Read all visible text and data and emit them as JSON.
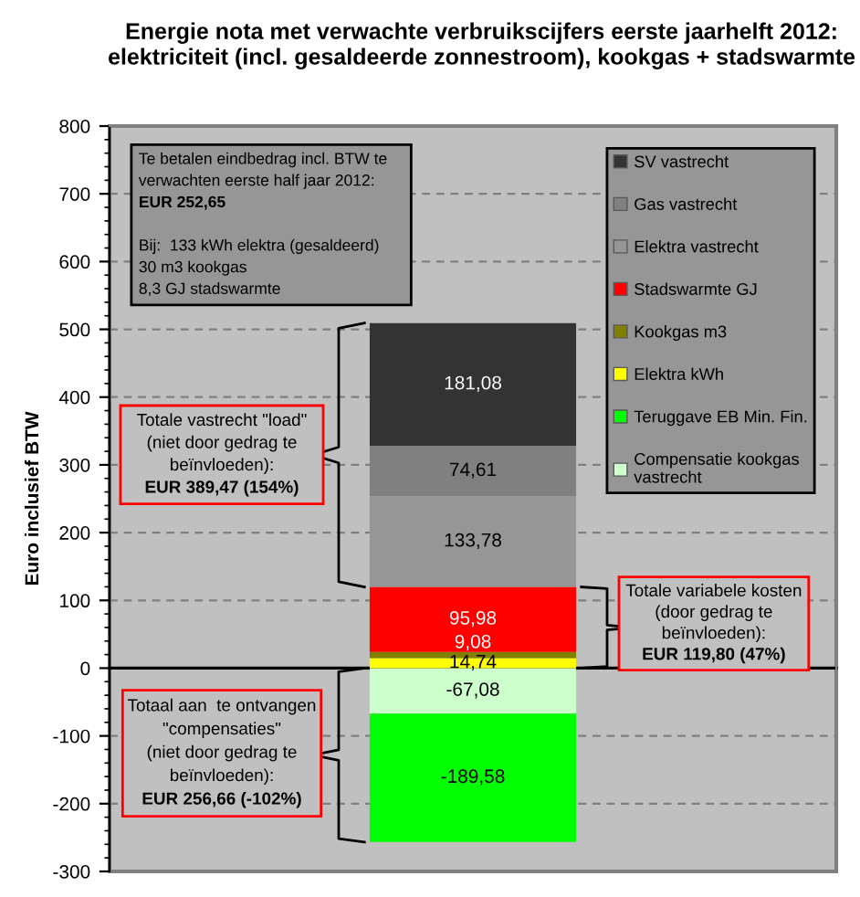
{
  "chart_data": {
    "type": "bar",
    "stacked": true,
    "title": "Energie nota met verwachte verbruikscijfers eerste jaarhelft 2012: elektriciteit (incl. gesaldeerde zonnestroom), kookgas + stadswarmte",
    "ylabel": "Euro inclusief BTW",
    "categories": [
      null
    ],
    "series": [
      {
        "name": "Compensatie kookgas vastrecht",
        "color": "#ccffcc",
        "values": [
          -67.08
        ],
        "value_labels": [
          "-67,08"
        ]
      },
      {
        "name": "Teruggave EB Min. Fin.",
        "color": "#00ff00",
        "values": [
          -189.58
        ],
        "value_labels": [
          "-189,58"
        ]
      },
      {
        "name": "Elektra kWh",
        "color": "#ffff00",
        "values": [
          14.74
        ],
        "value_labels": [
          "14,74"
        ]
      },
      {
        "name": "Kookgas m3",
        "color": "#808000",
        "values": [
          9.08
        ],
        "value_labels": [
          "9,08"
        ]
      },
      {
        "name": "Stadswarmte GJ",
        "color": "#ff0000",
        "values": [
          95.98
        ],
        "value_labels": [
          "95,98"
        ]
      },
      {
        "name": "Elektra vastrecht",
        "color": "#969696",
        "values": [
          133.78
        ],
        "value_labels": [
          "133,78"
        ]
      },
      {
        "name": "Gas vastrecht",
        "color": "#808080",
        "values": [
          74.61
        ],
        "value_labels": [
          "74,61"
        ]
      },
      {
        "name": "SV vastrecht",
        "color": "#333333",
        "values": [
          181.08
        ],
        "value_labels": [
          "181,08"
        ]
      }
    ],
    "ylim": [
      -300,
      800
    ],
    "yticks": [
      -300,
      -200,
      -100,
      0,
      100,
      200,
      300,
      400,
      500,
      600,
      700,
      800
    ],
    "grid": "y",
    "legend": "top right",
    "annotations": [
      "Te betalen eindbedrag incl. BTW te\nverwachten eerste half jaar 2012:\nEUR 252,65\n\nBij:  133 kWh elektra (gesaldeerd)\n30 m3 kookgas\n8,3 GJ stadswarmte",
      "Totale vastrecht \"load\"\n(niet door gedrag te\nbeïnvloeden):\nEUR 389,47 (154%)",
      "Totale variabele kosten\n(door gedrag te\nbeïnvloeden):\nEUR 119,80 (47%)",
      "Totaal aan  te ontvangen\n\"compensaties\"\n(niet door gedrag te\nbeïnvloeden):\nEUR 256,66 (-102%)"
    ]
  }
}
